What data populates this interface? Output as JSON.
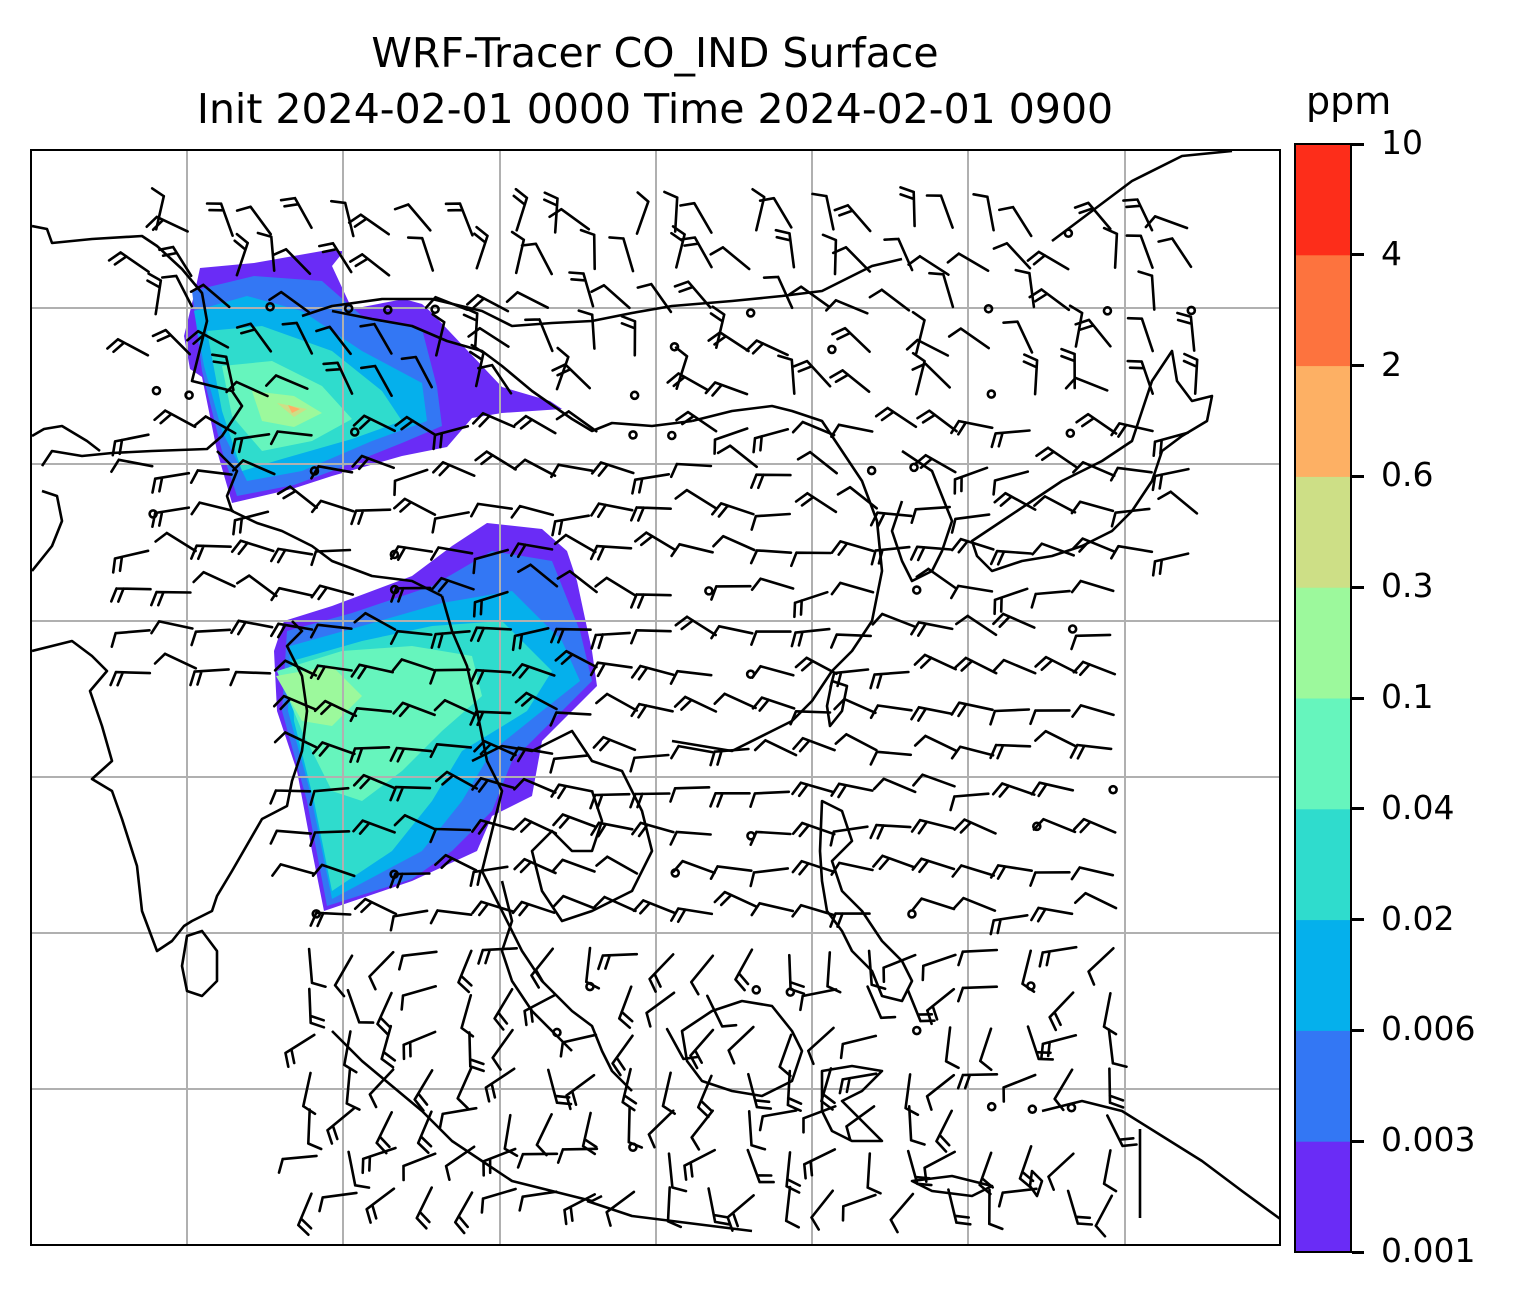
{
  "title": {
    "line1": "WRF-Tracer CO_IND Surface",
    "line2": "Init 2024-02-01 0000 Time 2024-02-01 0900"
  },
  "colorbar": {
    "unit": "ppm",
    "ticks": [
      "0.001",
      "0.003",
      "0.006",
      "0.02",
      "0.04",
      "0.1",
      "0.3",
      "0.6",
      "2",
      "4",
      "10"
    ],
    "colors": [
      "#6a2cf6",
      "#3377f4",
      "#05b0ec",
      "#2fdccd",
      "#66f5bd",
      "#9cf99c",
      "#cddf86",
      "#fdb064",
      "#fd733e",
      "#fd2d1a"
    ]
  },
  "map": {
    "gridlines": true,
    "coastline_color": "#000000",
    "grid_color": "#b0b0b0",
    "plume_colors": [
      "#6a2cf6",
      "#3377f4",
      "#05b0ec",
      "#2fdccd",
      "#66f5bd",
      "#9cf99c",
      "#cddf86",
      "#fdb064"
    ]
  }
}
